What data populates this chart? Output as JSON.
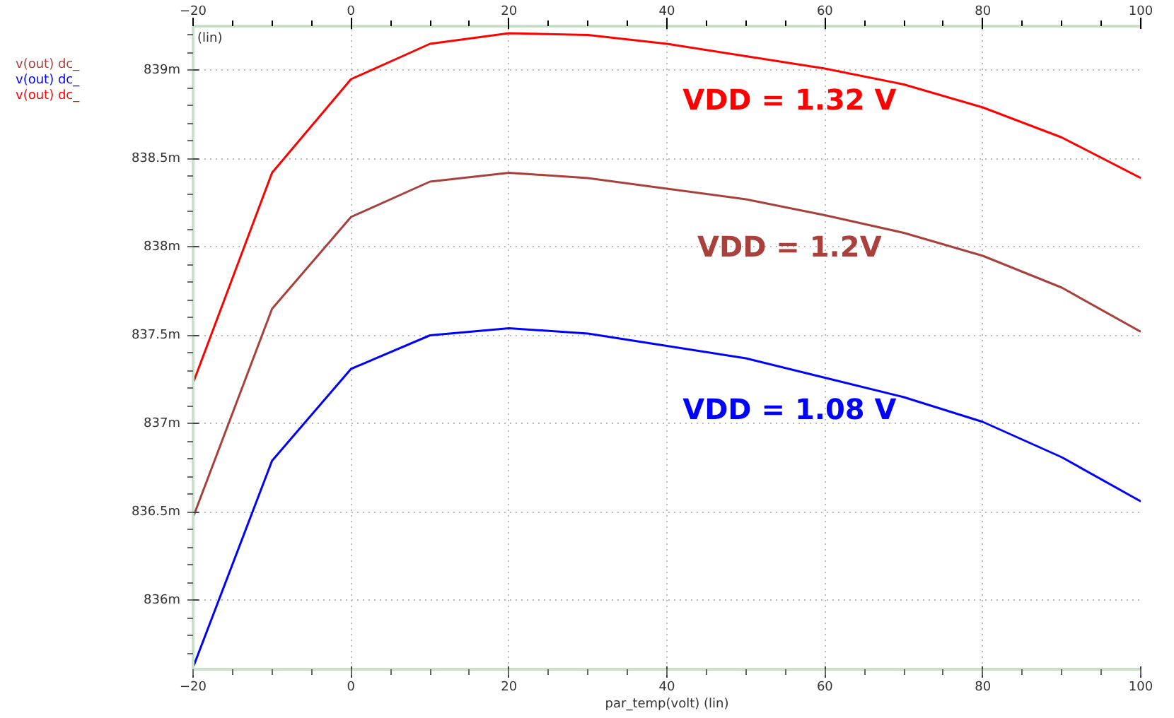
{
  "chart_data": {
    "type": "line",
    "xlabel": "par_temp(volt) (lin)",
    "ylabel": "(lin)",
    "x": [
      -20,
      -10,
      0,
      10,
      20,
      30,
      40,
      50,
      60,
      70,
      80,
      90,
      100
    ],
    "series": [
      {
        "name": "VDD = 1.2V",
        "color": "#a8403c",
        "values": [
          836.47,
          837.65,
          838.17,
          838.37,
          838.42,
          838.39,
          838.33,
          838.27,
          838.18,
          838.08,
          837.95,
          837.77,
          837.52
        ]
      },
      {
        "name": "VDD = 1.08 V",
        "color": "#0000ff",
        "values": [
          835.62,
          836.79,
          837.31,
          837.5,
          837.54,
          837.51,
          837.44,
          837.37,
          837.26,
          837.15,
          837.01,
          836.81,
          836.56
        ]
      },
      {
        "name": "VDD = 1.32 V",
        "color": "#ff0000",
        "values": [
          837.23,
          838.42,
          838.95,
          839.15,
          839.21,
          839.2,
          839.15,
          839.08,
          839.01,
          838.92,
          838.79,
          838.62,
          838.39
        ]
      }
    ],
    "annotations": [
      "v(out) dc_",
      "v(out) dc_",
      "v(out) dc_"
    ],
    "xlim": [
      -20,
      100
    ],
    "xticks": [
      -20,
      0,
      20,
      40,
      60,
      80,
      100
    ],
    "x2lim": [
      -20,
      100
    ],
    "x2ticks": [
      -20,
      0,
      20,
      40,
      60,
      80,
      100
    ],
    "ylim": [
      835.61,
      839.25
    ],
    "yticks": [
      {
        "value": 836,
        "label": "836m"
      },
      {
        "value": 836.5,
        "label": "836.5m"
      },
      {
        "value": 837,
        "label": "837m"
      },
      {
        "value": 837.5,
        "label": "837.5m"
      },
      {
        "value": 838,
        "label": "838m"
      },
      {
        "value": 838.5,
        "label": "838.5m"
      },
      {
        "value": 839,
        "label": "839m"
      }
    ],
    "grid": true,
    "marker": "none",
    "line_style": "solid"
  }
}
